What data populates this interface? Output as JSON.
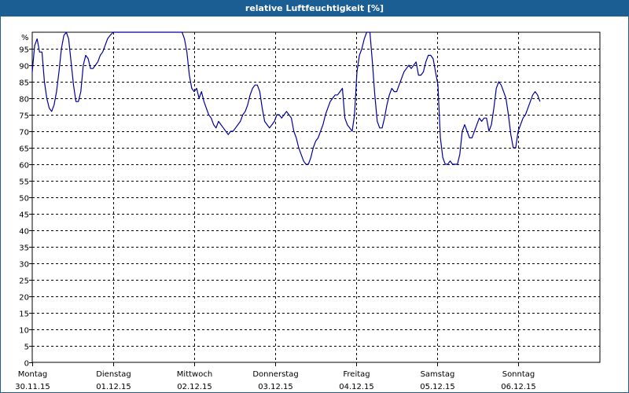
{
  "chart_data": {
    "type": "line",
    "title": "relative Luftfeuchtigkeit [%]",
    "y_unit_label": "%",
    "ylim": [
      0,
      100
    ],
    "y_ticks": [
      0,
      5,
      10,
      15,
      20,
      25,
      30,
      35,
      40,
      45,
      50,
      55,
      60,
      65,
      70,
      75,
      80,
      85,
      90,
      95
    ],
    "x_day_labels": [
      {
        "day": "Montag",
        "date": "30.11.15"
      },
      {
        "day": "Dienstag",
        "date": "01.12.15"
      },
      {
        "day": "Mittwoch",
        "date": "02.12.15"
      },
      {
        "day": "Donnerstag",
        "date": "03.12.15"
      },
      {
        "day": "Freitag",
        "date": "04.12.15"
      },
      {
        "day": "Samstag",
        "date": "05.12.15"
      },
      {
        "day": "Sonntag",
        "date": "06.12.15"
      }
    ],
    "grid": true,
    "line_color": "#0000a0",
    "x_unit": "days since start of Monday 30.11.15",
    "series": [
      {
        "points": [
          [
            0.0,
            88
          ],
          [
            0.03,
            96
          ],
          [
            0.06,
            98
          ],
          [
            0.09,
            94
          ],
          [
            0.12,
            94
          ],
          [
            0.15,
            85
          ],
          [
            0.18,
            80
          ],
          [
            0.21,
            77
          ],
          [
            0.24,
            76
          ],
          [
            0.27,
            78
          ],
          [
            0.3,
            82
          ],
          [
            0.33,
            88
          ],
          [
            0.36,
            95
          ],
          [
            0.39,
            99
          ],
          [
            0.42,
            100
          ],
          [
            0.45,
            98
          ],
          [
            0.48,
            91
          ],
          [
            0.51,
            84
          ],
          [
            0.54,
            79
          ],
          [
            0.57,
            79
          ],
          [
            0.6,
            82
          ],
          [
            0.63,
            90
          ],
          [
            0.66,
            93
          ],
          [
            0.69,
            92
          ],
          [
            0.72,
            89
          ],
          [
            0.75,
            89
          ],
          [
            0.78,
            90
          ],
          [
            0.81,
            91
          ],
          [
            0.84,
            93
          ],
          [
            0.87,
            94
          ],
          [
            0.9,
            96
          ],
          [
            0.93,
            98
          ],
          [
            0.96,
            99
          ],
          [
            1.0,
            100
          ],
          [
            1.1,
            100
          ],
          [
            1.3,
            100
          ],
          [
            1.5,
            100
          ],
          [
            1.85,
            100
          ],
          [
            1.88,
            98
          ],
          [
            1.91,
            94
          ],
          [
            1.94,
            87
          ],
          [
            1.97,
            83
          ],
          [
            2.0,
            82
          ],
          [
            2.03,
            83
          ],
          [
            2.06,
            80
          ],
          [
            2.09,
            82
          ],
          [
            2.12,
            79
          ],
          [
            2.15,
            77
          ],
          [
            2.18,
            75
          ],
          [
            2.21,
            74
          ],
          [
            2.24,
            72
          ],
          [
            2.27,
            71
          ],
          [
            2.3,
            73
          ],
          [
            2.33,
            72
          ],
          [
            2.36,
            71
          ],
          [
            2.39,
            70
          ],
          [
            2.42,
            69
          ],
          [
            2.45,
            70
          ],
          [
            2.48,
            70
          ],
          [
            2.51,
            71
          ],
          [
            2.54,
            72
          ],
          [
            2.57,
            73
          ],
          [
            2.6,
            75
          ],
          [
            2.63,
            76
          ],
          [
            2.66,
            78
          ],
          [
            2.69,
            81
          ],
          [
            2.72,
            83
          ],
          [
            2.75,
            84
          ],
          [
            2.78,
            84
          ],
          [
            2.81,
            82
          ],
          [
            2.84,
            77
          ],
          [
            2.87,
            73
          ],
          [
            2.9,
            72
          ],
          [
            2.93,
            71
          ],
          [
            2.96,
            72
          ],
          [
            2.99,
            73
          ],
          [
            3.02,
            75
          ],
          [
            3.05,
            75
          ],
          [
            3.08,
            74
          ],
          [
            3.11,
            75
          ],
          [
            3.14,
            76
          ],
          [
            3.17,
            75
          ],
          [
            3.2,
            74
          ],
          [
            3.23,
            70
          ],
          [
            3.26,
            68
          ],
          [
            3.29,
            65
          ],
          [
            3.32,
            63
          ],
          [
            3.35,
            61
          ],
          [
            3.38,
            60
          ],
          [
            3.41,
            60
          ],
          [
            3.44,
            62
          ],
          [
            3.47,
            65
          ],
          [
            3.5,
            67
          ],
          [
            3.53,
            68
          ],
          [
            3.56,
            70
          ],
          [
            3.59,
            72
          ],
          [
            3.62,
            75
          ],
          [
            3.65,
            77
          ],
          [
            3.68,
            79
          ],
          [
            3.71,
            80
          ],
          [
            3.74,
            81
          ],
          [
            3.77,
            81
          ],
          [
            3.8,
            82
          ],
          [
            3.83,
            83
          ],
          [
            3.86,
            74
          ],
          [
            3.89,
            72
          ],
          [
            3.92,
            71
          ],
          [
            3.95,
            70
          ],
          [
            3.98,
            75
          ],
          [
            4.01,
            88
          ],
          [
            4.04,
            93
          ],
          [
            4.07,
            95
          ],
          [
            4.1,
            98
          ],
          [
            4.13,
            100
          ],
          [
            4.17,
            100
          ],
          [
            4.2,
            91
          ],
          [
            4.23,
            81
          ],
          [
            4.26,
            73
          ],
          [
            4.29,
            71
          ],
          [
            4.32,
            71
          ],
          [
            4.35,
            74
          ],
          [
            4.38,
            78
          ],
          [
            4.41,
            81
          ],
          [
            4.44,
            83
          ],
          [
            4.47,
            82
          ],
          [
            4.5,
            82
          ],
          [
            4.53,
            84
          ],
          [
            4.56,
            86
          ],
          [
            4.59,
            88
          ],
          [
            4.62,
            89
          ],
          [
            4.65,
            90
          ],
          [
            4.68,
            89
          ],
          [
            4.71,
            90
          ],
          [
            4.74,
            91
          ],
          [
            4.77,
            87
          ],
          [
            4.8,
            87
          ],
          [
            4.83,
            88
          ],
          [
            4.86,
            91
          ],
          [
            4.89,
            93
          ],
          [
            4.92,
            93
          ],
          [
            4.95,
            92
          ],
          [
            4.98,
            88
          ],
          [
            5.01,
            84
          ],
          [
            5.04,
            68
          ],
          [
            5.07,
            62
          ],
          [
            5.1,
            60
          ],
          [
            5.13,
            60
          ],
          [
            5.16,
            61
          ],
          [
            5.19,
            60
          ],
          [
            5.22,
            60
          ],
          [
            5.25,
            60
          ],
          [
            5.28,
            63
          ],
          [
            5.31,
            70
          ],
          [
            5.34,
            72
          ],
          [
            5.37,
            70
          ],
          [
            5.4,
            68
          ],
          [
            5.43,
            68
          ],
          [
            5.46,
            70
          ],
          [
            5.49,
            72
          ],
          [
            5.52,
            74
          ],
          [
            5.55,
            73
          ],
          [
            5.58,
            74
          ],
          [
            5.61,
            74
          ],
          [
            5.64,
            70
          ],
          [
            5.67,
            72
          ],
          [
            5.7,
            77
          ],
          [
            5.73,
            83
          ],
          [
            5.76,
            85
          ],
          [
            5.79,
            84
          ],
          [
            5.82,
            82
          ],
          [
            5.85,
            80
          ],
          [
            5.88,
            75
          ],
          [
            5.91,
            69
          ],
          [
            5.94,
            65
          ],
          [
            5.97,
            65
          ],
          [
            6.0,
            70
          ],
          [
            6.03,
            72
          ],
          [
            6.06,
            74
          ],
          [
            6.09,
            75
          ],
          [
            6.12,
            77
          ],
          [
            6.15,
            79
          ],
          [
            6.18,
            81
          ],
          [
            6.21,
            82
          ],
          [
            6.24,
            81
          ],
          [
            6.27,
            79
          ]
        ]
      }
    ]
  }
}
